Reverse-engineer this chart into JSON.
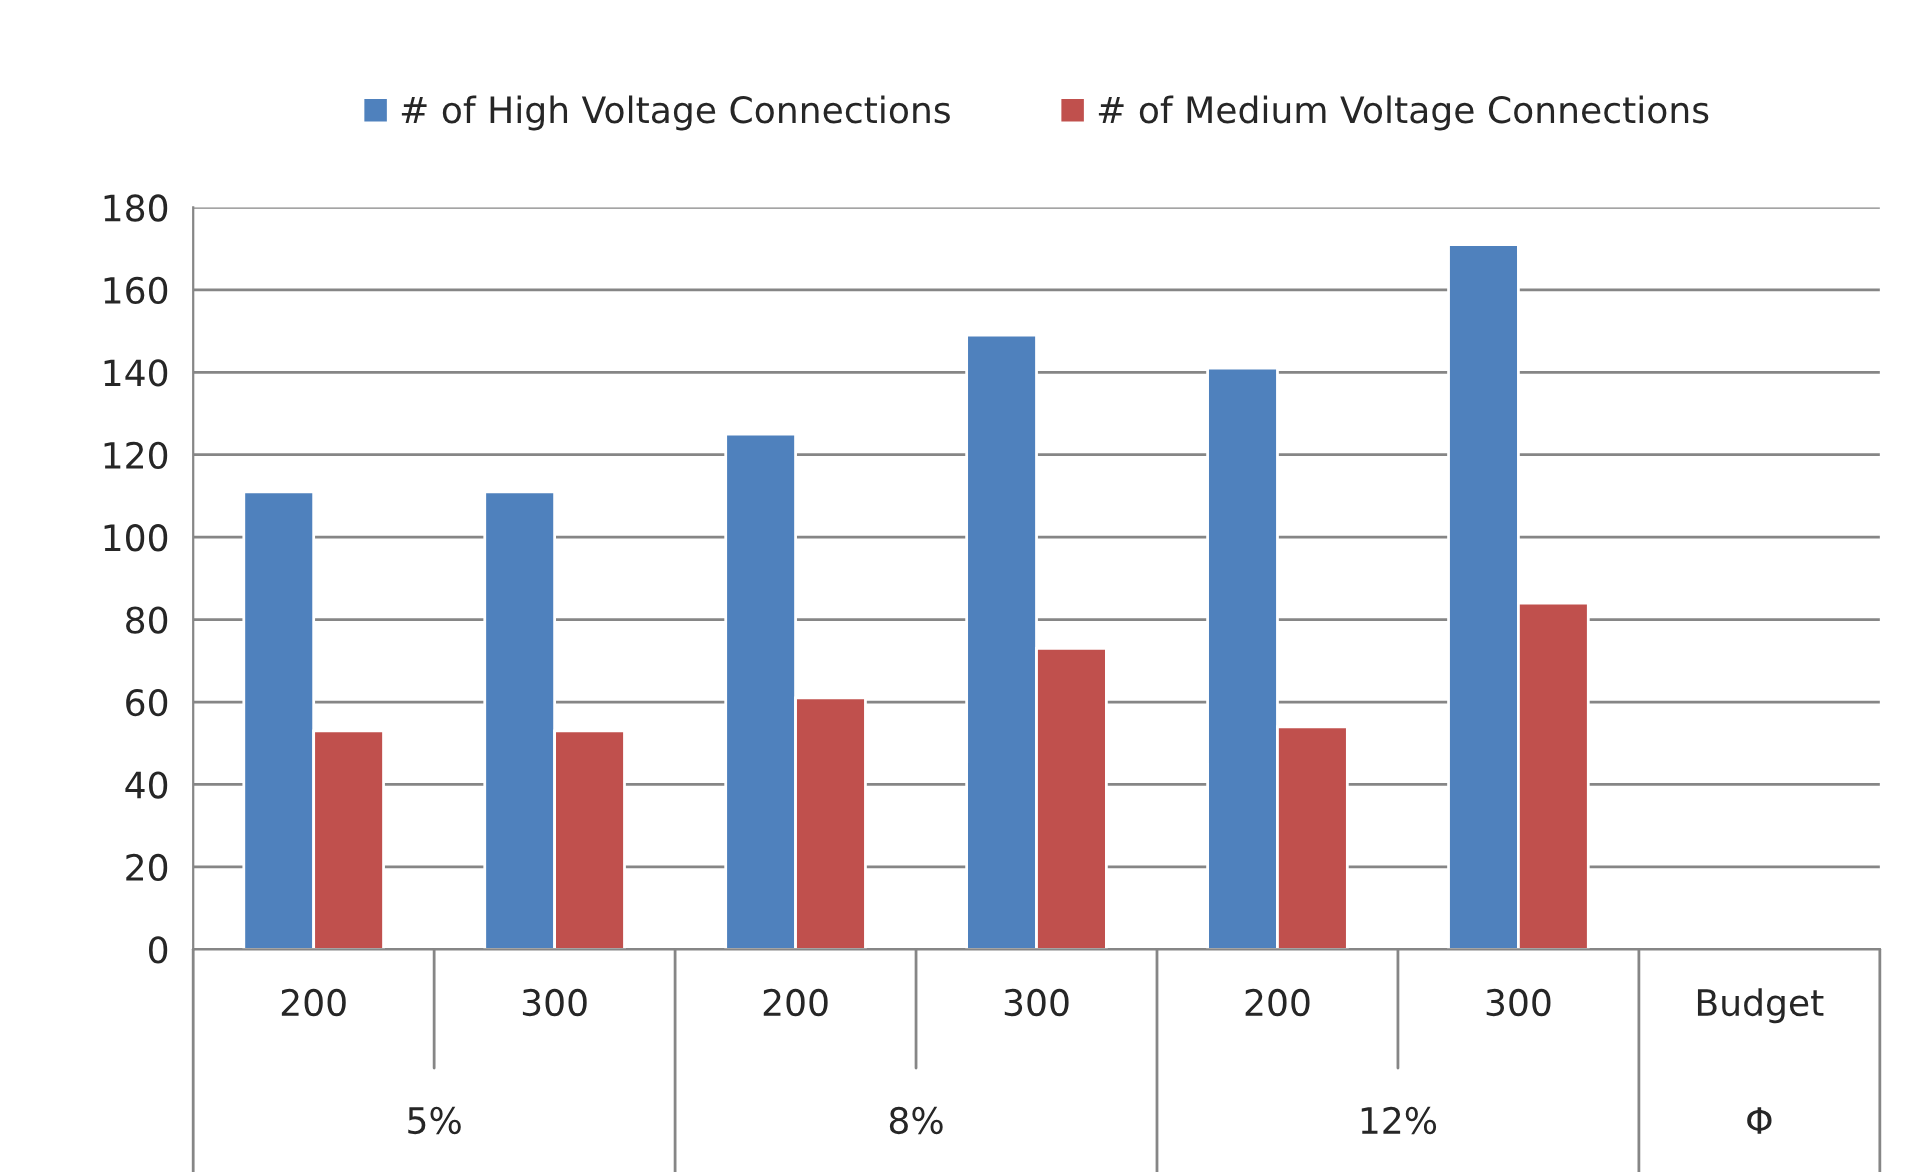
{
  "chart_data": {
    "type": "bar",
    "categories": [
      "200",
      "300",
      "200",
      "300",
      "200",
      "300",
      "Budget"
    ],
    "series": [
      {
        "name": "# of High Voltage Connections",
        "color": "#4f81bd",
        "values": [
          111,
          111,
          125,
          149,
          141,
          171,
          null
        ]
      },
      {
        "name": "# of Medium Voltage Connections",
        "color": "#c0504d",
        "values": [
          53,
          53,
          61,
          73,
          54,
          84,
          null
        ]
      }
    ],
    "annotations": [
      "5%",
      "8%",
      "12%",
      "Φ"
    ],
    "ylim": [
      0,
      180
    ],
    "yticks": [
      0,
      20,
      40,
      60,
      80,
      100,
      120,
      140,
      160,
      180
    ],
    "grid": "y",
    "legend": "top"
  }
}
